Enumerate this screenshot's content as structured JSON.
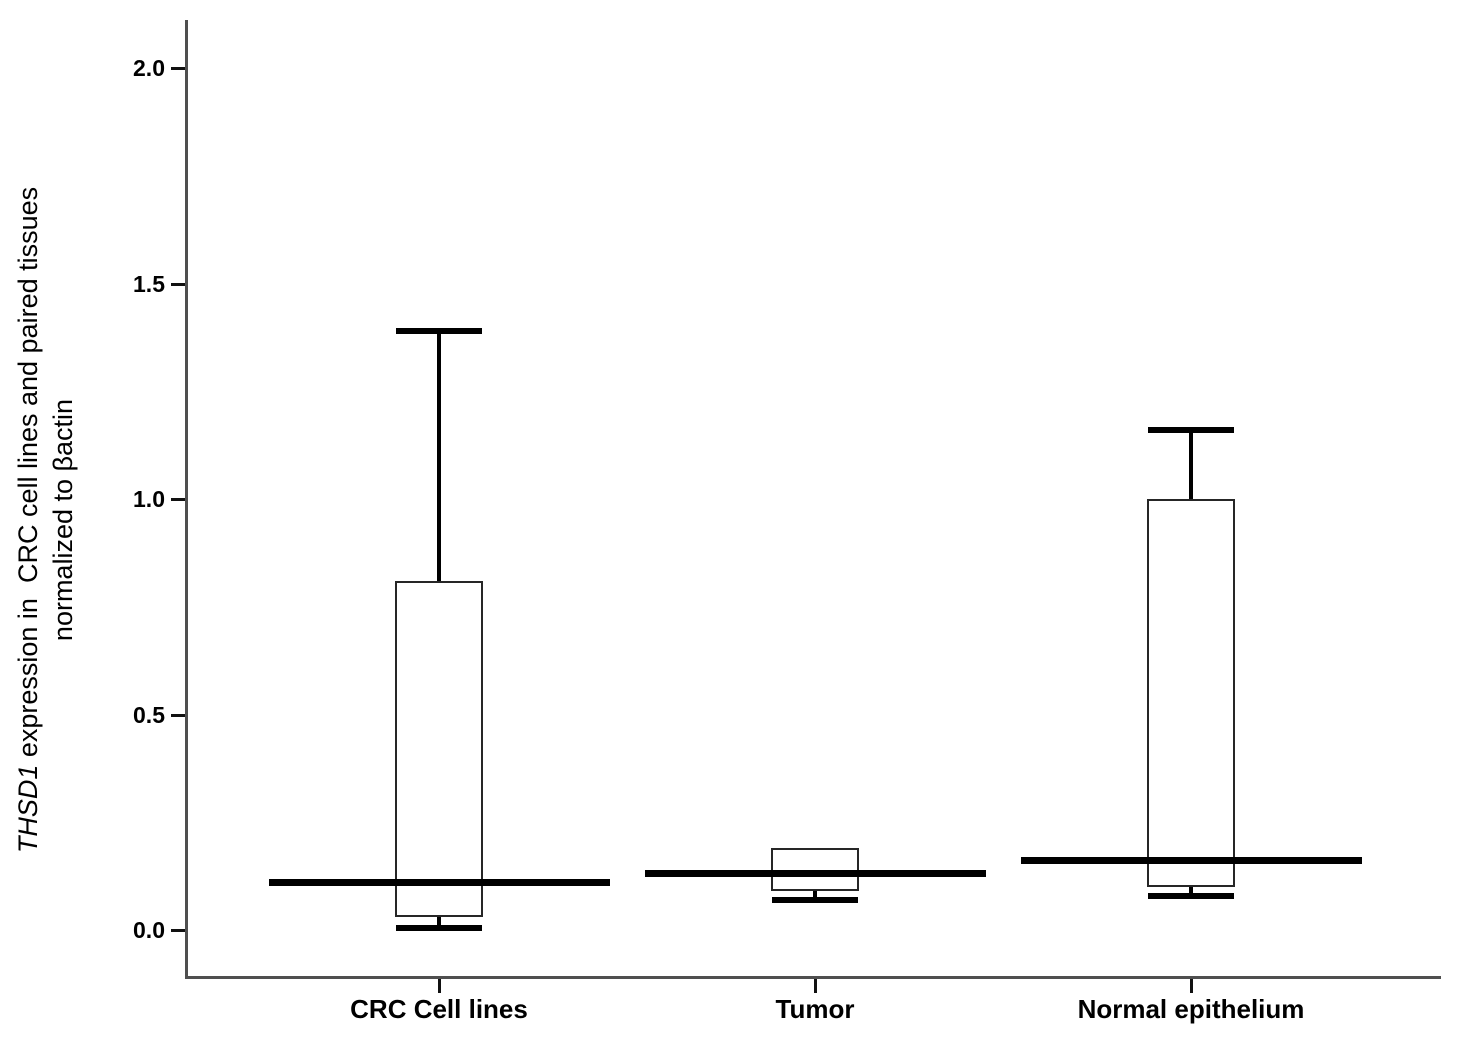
{
  "chart_data": {
    "type": "boxplot",
    "title": "",
    "ylabel_italic": "THSD1",
    "ylabel_line1_rest": " expression in  CRC cell lines and paired tissues",
    "ylabel_line2": "normalized to βactin",
    "xlabel": "",
    "categories": [
      "CRC Cell lines",
      "Tumor",
      "Normal epithelium"
    ],
    "y_ticks": [
      0.0,
      0.5,
      1.0,
      1.5,
      2.0
    ],
    "ylim": [
      0.0,
      2.0
    ],
    "grid": false,
    "legend": false,
    "colors": {
      "axis": "#4f4f4f",
      "tick": "#111111",
      "box_border": "#262626",
      "whisker": "#000000",
      "median": "#000000",
      "text": "#000000",
      "background": "#ffffff"
    },
    "boxes": [
      {
        "category": "CRC Cell lines",
        "whisker_low": 0.005,
        "q1": 0.03,
        "median": 0.11,
        "q3": 0.81,
        "whisker_high": 1.39
      },
      {
        "category": "Tumor",
        "whisker_low": 0.07,
        "q1": 0.09,
        "median": 0.13,
        "q3": 0.19,
        "whisker_high": null
      },
      {
        "category": "Normal epithelium",
        "whisker_low": 0.08,
        "q1": 0.1,
        "median": 0.16,
        "q3": 1.0,
        "whisker_high": 1.16
      }
    ]
  }
}
